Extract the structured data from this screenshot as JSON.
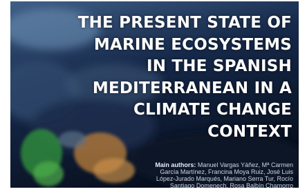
{
  "cover": {
    "title_lines": [
      "THE PRESENT STATE OF",
      "MARINE ECOSYSTEMS",
      "IN THE SPANISH",
      "MEDITERRANEAN IN A",
      "CLIMATE CHANGE",
      "CONTEXT"
    ],
    "authors": {
      "label": "Main authors:",
      "lines": [
        "Manuel Vargas Yáñez, Mª Carmen",
        "García Martínez, Francina Moya Ruiz, José Luis",
        "López-Jurado Marqués, Mariano Serra Tur, Rocío",
        "Santiago Domenech, Rosa Balbín Chamorro"
      ]
    }
  }
}
